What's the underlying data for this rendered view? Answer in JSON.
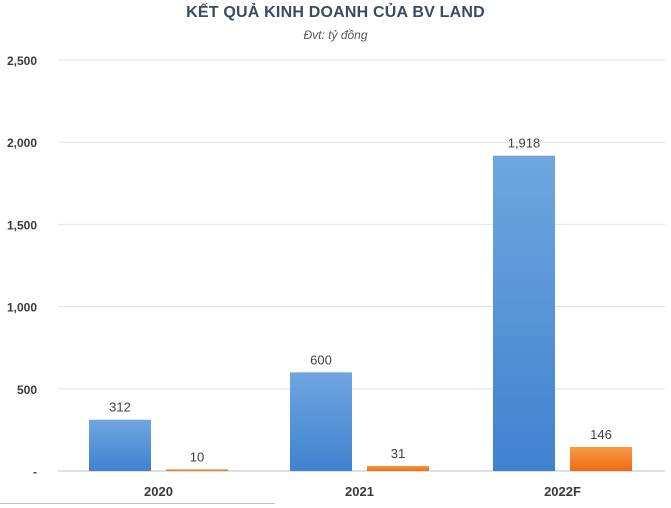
{
  "chart_data": {
    "type": "bar",
    "title": "KẾT QUẢ KINH DOANH CỦA BV LAND",
    "subtitle": "Đvt: tỷ đồng",
    "categories": [
      "2020",
      "2021",
      "2022F"
    ],
    "series": [
      {
        "values": [
          312,
          600,
          1918
        ],
        "labels": [
          "312",
          "600",
          "1,918"
        ],
        "color": "#4f8fd6"
      },
      {
        "values": [
          10,
          31,
          146
        ],
        "labels": [
          "10",
          "31",
          "146"
        ],
        "color": "#f07a20"
      }
    ],
    "ylim": [
      0,
      2500
    ],
    "yticks": [
      0,
      500,
      1000,
      1500,
      2000,
      2500
    ],
    "ytick_labels": [
      "-",
      "500",
      "1,000",
      "1,500",
      "2,000",
      "2,500"
    ],
    "grid": true,
    "legend": "none"
  }
}
